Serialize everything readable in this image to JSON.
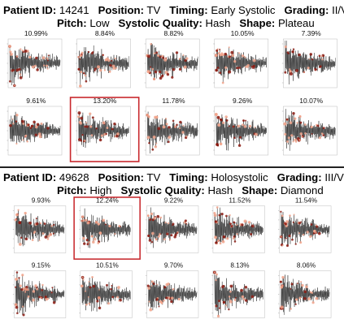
{
  "patients": [
    {
      "header": {
        "line1": [
          {
            "key": "Patient ID:",
            "value": "14241"
          },
          {
            "key": "Position:",
            "value": "TV"
          },
          {
            "key": "Timing:",
            "value": "Early Systolic"
          },
          {
            "key": "Grading:",
            "value": "II/VI"
          }
        ],
        "line2": [
          {
            "key": "Pitch:",
            "value": "Low"
          },
          {
            "key": "Systolic Quality:",
            "value": "Hash"
          },
          {
            "key": "Shape:",
            "value": "Plateau"
          }
        ]
      },
      "highlighted_index": 6
    },
    {
      "header": {
        "line1": [
          {
            "key": "Patient ID:",
            "value": "49628"
          },
          {
            "key": "Position:",
            "value": "TV"
          },
          {
            "key": "Timing:",
            "value": "Holosystolic"
          },
          {
            "key": "Grading:",
            "value": "III/VI"
          }
        ],
        "line2": [
          {
            "key": "Pitch:",
            "value": "High"
          },
          {
            "key": "Systolic Quality:",
            "value": "Hash"
          },
          {
            "key": "Shape:",
            "value": "Diamond"
          }
        ]
      },
      "highlighted_index": 1
    }
  ],
  "chart_data": [
    {
      "type": "line",
      "subplot_titles": [
        "10.99%",
        "8.84%",
        "8.82%",
        "10.05%",
        "7.39%",
        "9.61%",
        "13.20%",
        "11.78%",
        "9.26%",
        "10.07%"
      ],
      "colors": {
        "signal": "#2b2b2b",
        "highlight_frame": "#c8282d",
        "attention_low": "#f2a58c",
        "attention_high": "#8b1a10"
      }
    },
    {
      "type": "line",
      "subplot_titles": [
        "9.93%",
        "12.24%",
        "9.22%",
        "11.52%",
        "11.54%",
        "9.15%",
        "10.51%",
        "9.70%",
        "8.13%",
        "8.06%"
      ],
      "colors": {
        "signal": "#2b2b2b",
        "highlight_frame": "#c8282d",
        "attention_low": "#f2a58c",
        "attention_high": "#8b1a10"
      }
    }
  ]
}
